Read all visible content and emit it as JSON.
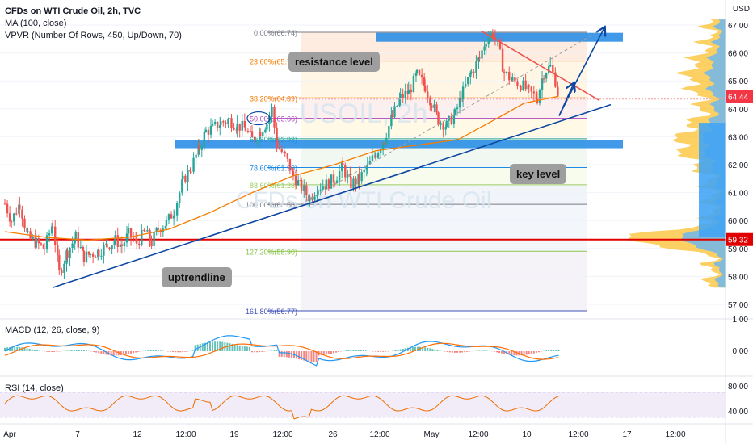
{
  "legend": {
    "title": "CFDs on WTI Crude Oil, 2h, TVC",
    "ma": "MA (100, close)",
    "vpvr": "VPVR (Number Of Rows, 450, Up/Down, 70)",
    "macd": "MACD (12, 26, close, 9)",
    "rsi": "RSI (14, close)"
  },
  "watermark": {
    "symbol": "USOIL, 2h",
    "name": "CFDs on WTI Crude Oil"
  },
  "currency": "USD",
  "annotations": {
    "resistance": "resistance level",
    "key": "key level",
    "uptrend": "uptrendline"
  },
  "colors": {
    "up": "#26a69a",
    "down": "#ef5350",
    "ma": "#f57c00",
    "trend": "#0d47a1",
    "key_zone": "#1e88e5",
    "red_line": "#e00000",
    "macd": "#2196f3",
    "signal": "#ff6d00",
    "rsi": "#7e57c2"
  },
  "chart_data": [
    {
      "type": "candlestick",
      "title": "CFDs on WTI Crude Oil, 2h, TVC",
      "y_ticks": [
        "67.00",
        "66.00",
        "65.00",
        "64.00",
        "63.00",
        "62.00",
        "61.00",
        "60.00",
        "59.00",
        "58.00",
        "57.00"
      ],
      "ylim": [
        56.6,
        67.3
      ],
      "x_ticks": [
        "Apr",
        "7",
        "12",
        "12:00",
        "19",
        "12:00",
        "26",
        "12:00",
        "May",
        "12:00",
        "10",
        "12:00",
        "17",
        "12:00"
      ],
      "last_price": "64.44",
      "marked_level": "59.32",
      "fibonacci": [
        {
          "label": "0.00%(66.74)",
          "price": 66.74
        },
        {
          "label": "23.60%(65.71)",
          "price": 65.71
        },
        {
          "label": "38.20%(64.39)",
          "price": 64.39
        },
        {
          "label": "50.00%(63.66)",
          "price": 63.66
        },
        {
          "label": "61.80%(62.93)",
          "price": 62.93
        },
        {
          "label": "78.60%(61.90)",
          "price": 61.9
        },
        {
          "label": "88.60%(61.28)",
          "price": 61.28
        },
        {
          "label": "100.00%(60.58)",
          "price": 60.58
        },
        {
          "label": "127.20%(58.90)",
          "price": 58.9
        },
        {
          "label": "161.80%(56.77)",
          "price": 56.77
        }
      ],
      "path": [
        [
          0,
          60.6
        ],
        [
          8,
          60.0
        ],
        [
          18,
          60.6
        ],
        [
          28,
          59.4
        ],
        [
          38,
          59.2
        ],
        [
          48,
          59.0
        ],
        [
          58,
          59.9
        ],
        [
          66,
          58.1
        ],
        [
          76,
          58.9
        ],
        [
          86,
          59.4
        ],
        [
          96,
          58.7
        ],
        [
          104,
          58.8
        ],
        [
          114,
          58.9
        ],
        [
          124,
          59.1
        ],
        [
          134,
          59.3
        ],
        [
          142,
          59.1
        ],
        [
          150,
          59.5
        ],
        [
          160,
          59.2
        ],
        [
          170,
          59.6
        ],
        [
          178,
          59.2
        ],
        [
          186,
          59.7
        ],
        [
          196,
          59.9
        ],
        [
          206,
          60.4
        ],
        [
          216,
          61.4
        ],
        [
          226,
          61.9
        ],
        [
          236,
          62.6
        ],
        [
          244,
          63.2
        ],
        [
          252,
          63.3
        ],
        [
          262,
          63.5
        ],
        [
          272,
          63.6
        ],
        [
          282,
          63.4
        ],
        [
          292,
          63.3
        ],
        [
          300,
          62.9
        ],
        [
          310,
          63.2
        ],
        [
          318,
          63.5
        ],
        [
          324,
          64.0
        ],
        [
          330,
          62.7
        ],
        [
          340,
          62.3
        ],
        [
          350,
          61.6
        ],
        [
          360,
          61.2
        ],
        [
          370,
          60.8
        ],
        [
          380,
          61.2
        ],
        [
          390,
          61.3
        ],
        [
          400,
          61.5
        ],
        [
          410,
          61.9
        ],
        [
          420,
          61.3
        ],
        [
          430,
          61.5
        ],
        [
          440,
          61.9
        ],
        [
          450,
          62.4
        ],
        [
          460,
          62.9
        ],
        [
          470,
          63.7
        ],
        [
          480,
          64.4
        ],
        [
          490,
          64.6
        ],
        [
          500,
          65.2
        ],
        [
          510,
          64.8
        ],
        [
          518,
          64.2
        ],
        [
          526,
          63.6
        ],
        [
          536,
          63.4
        ],
        [
          546,
          63.8
        ],
        [
          556,
          64.6
        ],
        [
          566,
          65.3
        ],
        [
          576,
          65.8
        ],
        [
          584,
          66.5
        ],
        [
          592,
          66.7
        ],
        [
          598,
          66.3
        ],
        [
          606,
          65.3
        ],
        [
          616,
          65.0
        ],
        [
          626,
          64.9
        ],
        [
          636,
          64.6
        ],
        [
          646,
          64.4
        ],
        [
          654,
          65.3
        ],
        [
          662,
          65.5
        ],
        [
          668,
          65.0
        ],
        [
          672,
          64.44
        ]
      ],
      "ma100": [
        [
          0,
          59.6
        ],
        [
          50,
          59.4
        ],
        [
          100,
          59.3
        ],
        [
          150,
          59.4
        ],
        [
          200,
          59.7
        ],
        [
          250,
          60.3
        ],
        [
          300,
          61.0
        ],
        [
          350,
          61.6
        ],
        [
          400,
          62.0
        ],
        [
          450,
          62.5
        ],
        [
          500,
          62.7
        ],
        [
          550,
          62.9
        ],
        [
          600,
          63.7
        ],
        [
          630,
          64.2
        ],
        [
          672,
          64.45
        ]
      ]
    },
    {
      "type": "line",
      "title": "MACD (12, 26, close, 9)",
      "y_ticks": [
        "1.00",
        "0.00"
      ],
      "series": [
        {
          "name": "MACD"
        },
        {
          "name": "Signal"
        }
      ]
    },
    {
      "type": "line",
      "title": "RSI (14, close)",
      "y_ticks": [
        "80.00",
        "40.00"
      ],
      "band": [
        30,
        70
      ]
    }
  ]
}
